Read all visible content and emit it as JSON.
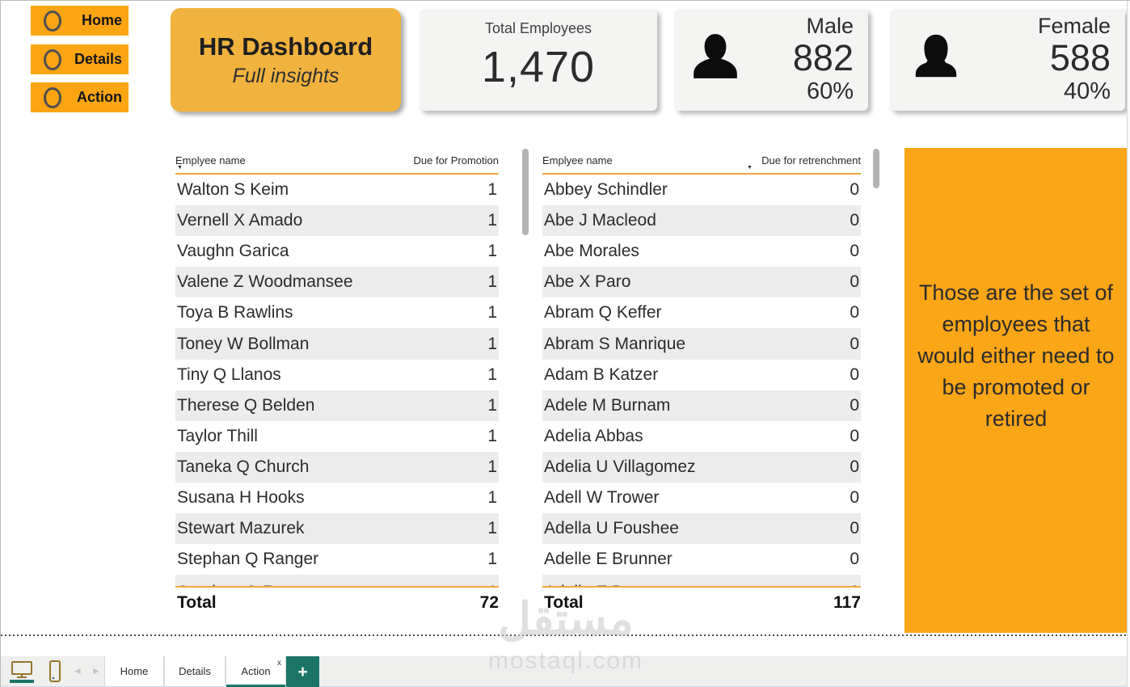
{
  "nav": {
    "items": [
      {
        "label": "Home"
      },
      {
        "label": "Details"
      },
      {
        "label": "Action"
      }
    ]
  },
  "title_card": {
    "title": "HR Dashboard",
    "subtitle": "Full insights"
  },
  "kpis": {
    "total": {
      "label": "Total Employees",
      "value": "1,470"
    },
    "male": {
      "label": "Male",
      "value": "882",
      "percent": "60%"
    },
    "female": {
      "label": "Female",
      "value": "588",
      "percent": "40%"
    }
  },
  "promotion_table": {
    "name_header": "Emplyee name",
    "value_header": "Due for Promotion",
    "sorted_by": "name",
    "rows": [
      {
        "name": "Walton S Keim",
        "value": "1"
      },
      {
        "name": "Vernell X Amado",
        "value": "1"
      },
      {
        "name": "Vaughn Garica",
        "value": "1"
      },
      {
        "name": "Valene Z Woodmansee",
        "value": "1"
      },
      {
        "name": "Toya B Rawlins",
        "value": "1"
      },
      {
        "name": "Toney W Bollman",
        "value": "1"
      },
      {
        "name": "Tiny Q Llanos",
        "value": "1"
      },
      {
        "name": "Therese Q Belden",
        "value": "1"
      },
      {
        "name": "Taylor Thill",
        "value": "1"
      },
      {
        "name": "Taneka Q Church",
        "value": "1"
      },
      {
        "name": "Susana H Hooks",
        "value": "1"
      },
      {
        "name": "Stewart Mazurek",
        "value": "1"
      },
      {
        "name": "Stephan Q Ranger",
        "value": "1"
      }
    ],
    "total_label": "Total",
    "total_value": "72"
  },
  "retrenchment_table": {
    "name_header": "Emplyee name",
    "value_header": "Due for retrenchment",
    "sorted_by": "value",
    "rows": [
      {
        "name": "Abbey Schindler",
        "value": "0"
      },
      {
        "name": "Abe J Macleod",
        "value": "0"
      },
      {
        "name": "Abe Morales",
        "value": "0"
      },
      {
        "name": "Abe X Paro",
        "value": "0"
      },
      {
        "name": "Abram Q Keffer",
        "value": "0"
      },
      {
        "name": "Abram S Manrique",
        "value": "0"
      },
      {
        "name": "Adam B Katzer",
        "value": "0"
      },
      {
        "name": "Adele M Burnam",
        "value": "0"
      },
      {
        "name": "Adelia Abbas",
        "value": "0"
      },
      {
        "name": "Adelia U Villagomez",
        "value": "0"
      },
      {
        "name": "Adell W Trower",
        "value": "0"
      },
      {
        "name": "Adella U Foushee",
        "value": "0"
      },
      {
        "name": "Adelle E Brunner",
        "value": "0"
      }
    ],
    "total_label": "Total",
    "total_value": "117"
  },
  "note_panel": {
    "text": "Those are the set of employees that would either need to be promoted or retired"
  },
  "watermark": {
    "logo": "مستقل",
    "domain": "mostaql.com"
  },
  "tab_bar": {
    "tabs": [
      {
        "label": "Home"
      },
      {
        "label": "Details"
      },
      {
        "label": "Action",
        "active": true
      }
    ]
  },
  "icons": {
    "sort": "▼",
    "close": "x",
    "add": "+",
    "back": "◄",
    "forward": "►"
  },
  "colors": {
    "button_orange": "#FBA513",
    "card_orange": "#F2B33E",
    "panel_orange": "#FBA617",
    "table_rule_orange": "#EFA73D",
    "teal": "#1A7567",
    "alt_row_gray": "#ececec"
  }
}
